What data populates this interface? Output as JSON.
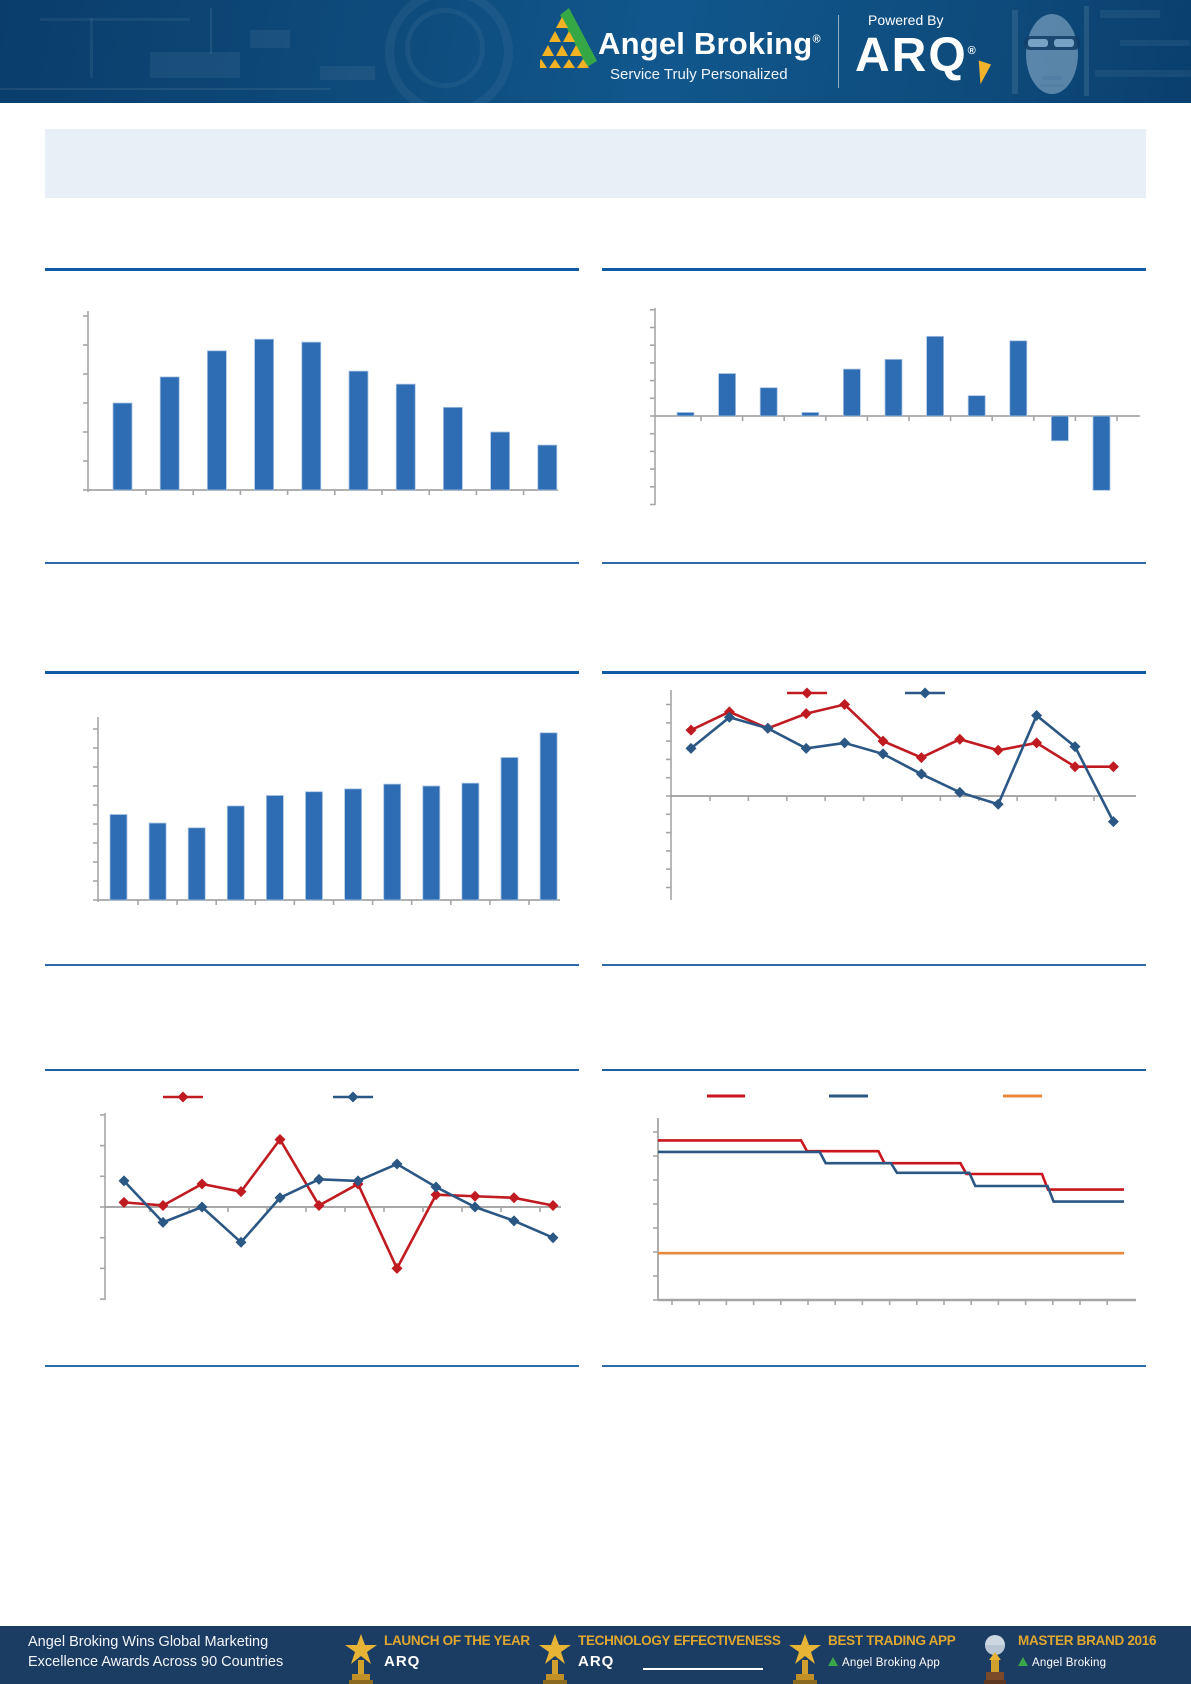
{
  "header": {
    "brand": "Angel Broking",
    "brand_mark": "®",
    "tagline": "Service Truly Personalized",
    "powered_by": "Powered By",
    "arq": "ARQ",
    "arq_mark": "®"
  },
  "banner": {
    "text": ""
  },
  "footer": {
    "headline_line1": "Angel Broking Wins Global Marketing",
    "headline_line2": "Excellence Awards Across 90 Countries",
    "awards": [
      {
        "title": "LAUNCH OF THE YEAR",
        "subtitle": "ARQ",
        "icon": "trophy"
      },
      {
        "title": "TECHNOLOGY EFFECTIVENESS",
        "subtitle": "ARQ",
        "icon": "trophy"
      },
      {
        "title": "BEST TRADING APP",
        "subtitle": "Angel Broking App",
        "icon": "trophy"
      },
      {
        "title": "MASTER BRAND 2016",
        "subtitle": "Angel Broking",
        "icon": "globe-trophy"
      }
    ]
  },
  "colors": {
    "bar_blue": "#2E6DB4",
    "bar_edge": "#A9C3E2",
    "line_red": "#C11B22",
    "line_blue": "#2B5784",
    "line_orange": "#E8883C",
    "axis_gray": "#A6A6A6",
    "divider_blue": "#1059A5",
    "banner_bg": "#E9EFF6",
    "header_bg": "#0E4C7D",
    "footer_bg": "#1B3C63"
  },
  "chart_data": [
    {
      "id": "chart-1",
      "position": "top-left",
      "type": "bar",
      "title": "",
      "xlabel": "",
      "ylabel": "",
      "categories": [],
      "values": [
        3.0,
        3.9,
        4.8,
        5.2,
        5.1,
        4.1,
        3.65,
        2.85,
        2.0,
        1.55
      ],
      "ylim": [
        0,
        6
      ],
      "ytick_step": 1,
      "grid": false,
      "legend": "none",
      "note": "single blue series, rises then falls"
    },
    {
      "id": "chart-2",
      "position": "top-right",
      "type": "bar",
      "title": "",
      "xlabel": "",
      "ylabel": "",
      "categories": [],
      "values": [
        0.2,
        2.4,
        1.6,
        0.2,
        2.65,
        3.2,
        4.5,
        1.15,
        4.25,
        -1.4,
        -4.2
      ],
      "ylim": [
        -5,
        6
      ],
      "ytick_step": 1,
      "grid": false,
      "legend": "none",
      "note": "positive and negative blue bars around zero axis"
    },
    {
      "id": "chart-3",
      "position": "mid-left",
      "type": "bar",
      "title": "",
      "xlabel": "",
      "ylabel": "",
      "categories": [],
      "values": [
        4.5,
        4.05,
        3.8,
        4.95,
        5.5,
        5.7,
        5.85,
        6.1,
        6.0,
        6.15,
        7.5,
        8.8
      ],
      "ylim": [
        0,
        9.6
      ],
      "ytick_step": 1,
      "grid": false,
      "legend": "none",
      "note": "single blue series, generally increasing"
    },
    {
      "id": "chart-4",
      "position": "mid-right",
      "type": "line",
      "title": "",
      "xlabel": "",
      "ylabel": "",
      "x": [
        1,
        2,
        3,
        4,
        5,
        6,
        7,
        8,
        9,
        10,
        11,
        12
      ],
      "series": [
        {
          "name": "red-series",
          "color": "#C11B22",
          "marker": "diamond",
          "values": [
            3.6,
            4.6,
            3.7,
            4.5,
            5.0,
            3.0,
            2.1,
            3.1,
            2.5,
            2.9,
            1.6,
            1.6
          ]
        },
        {
          "name": "blue-series",
          "color": "#2B5784",
          "marker": "diamond",
          "values": [
            2.6,
            4.3,
            3.7,
            2.6,
            2.9,
            2.3,
            1.2,
            0.2,
            -0.45,
            4.4,
            2.7,
            -1.4
          ]
        }
      ],
      "ylim": [
        -5.7,
        5.8
      ],
      "ytick_step": 1,
      "grid": false,
      "legend": "top-center"
    },
    {
      "id": "chart-5",
      "position": "bottom-left",
      "type": "line",
      "title": "",
      "xlabel": "",
      "ylabel": "",
      "x": [
        1,
        2,
        3,
        4,
        5,
        6,
        7,
        8,
        9,
        10,
        11,
        12
      ],
      "series": [
        {
          "name": "red-series",
          "color": "#C11B22",
          "marker": "diamond",
          "values": [
            0.15,
            0.05,
            0.75,
            0.5,
            2.2,
            0.05,
            0.75,
            -2.0,
            0.4,
            0.35,
            0.3,
            0.05
          ]
        },
        {
          "name": "blue-series",
          "color": "#2B5784",
          "marker": "diamond",
          "values": [
            0.85,
            -0.5,
            0.0,
            -1.15,
            0.3,
            0.9,
            0.85,
            1.4,
            0.65,
            0.0,
            -0.45,
            -1.0
          ]
        }
      ],
      "ylim": [
        -3,
        3
      ],
      "ytick_step": 1,
      "grid": false,
      "legend": "top-center"
    },
    {
      "id": "chart-6",
      "position": "bottom-right",
      "type": "step",
      "title": "",
      "xlabel": "",
      "ylabel": "",
      "series": [
        {
          "name": "red-step",
          "color": "#C9151C",
          "levels": [
            6.65,
            6.2,
            5.7,
            5.25,
            4.6
          ],
          "breaks": [
            0.307,
            0.473,
            0.649,
            0.824
          ]
        },
        {
          "name": "blue-step",
          "color": "#2B5784",
          "levels": [
            6.17,
            5.7,
            5.3,
            4.75,
            4.1
          ],
          "breaks": [
            0.347,
            0.5,
            0.668,
            0.836
          ]
        },
        {
          "name": "orange-flat",
          "color": "#E8883C",
          "levels": [
            1.95
          ],
          "breaks": []
        }
      ],
      "ylim": [
        0,
        7.6
      ],
      "ytick_step": 1,
      "grid": false,
      "legend": "top-row",
      "note": "two declining step lines with flat orange reference line below"
    }
  ]
}
